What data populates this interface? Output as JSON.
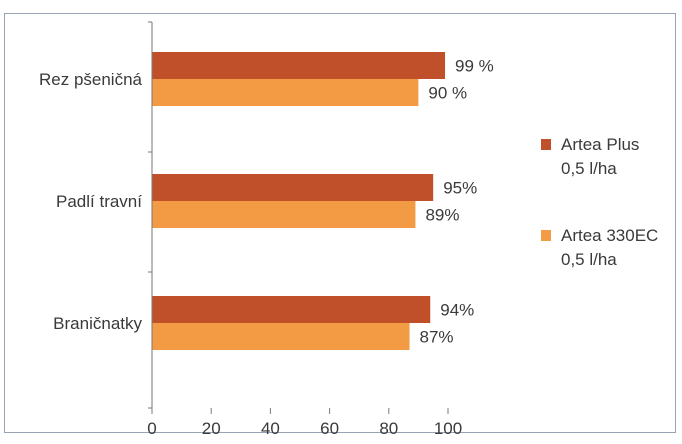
{
  "chart_data": {
    "type": "bar",
    "orientation": "horizontal",
    "categories": [
      "Rez pšeničná",
      "Padlí travní",
      "Braničnatky"
    ],
    "series": [
      {
        "name_lines": [
          "Artea Plus",
          "0,5 l/ha"
        ],
        "color": "#c0502a",
        "values": [
          99,
          95,
          94
        ],
        "labels": [
          "99 %",
          "95%",
          "94%"
        ]
      },
      {
        "name_lines": [
          "Artea 330EC",
          "0,5 l/ha"
        ],
        "color": "#f39a44",
        "values": [
          90,
          89,
          87
        ],
        "labels": [
          "90 %",
          "89%",
          "87%"
        ]
      }
    ],
    "xlim": [
      0,
      100
    ],
    "xticks": [
      0,
      20,
      40,
      60,
      80,
      100
    ],
    "xtick_labels": [
      "0",
      "20",
      "40",
      "60",
      "80",
      "100"
    ],
    "legend_position": "right",
    "grid": false
  }
}
